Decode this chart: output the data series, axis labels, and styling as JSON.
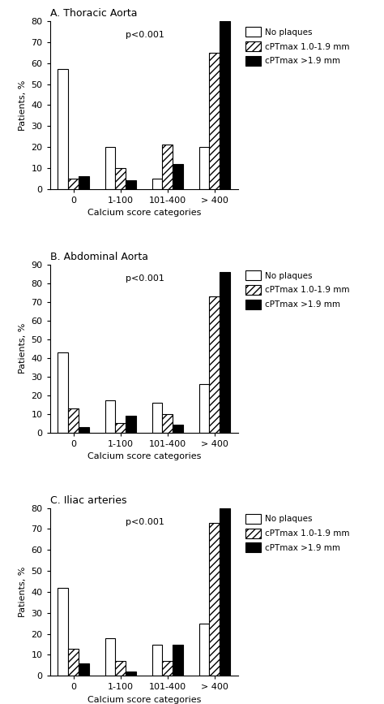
{
  "panels": [
    {
      "title": "A. Thoracic Aorta",
      "ylabel": "Patients, %",
      "xlabel": "Calcium score categories",
      "pvalue": "p<0.001",
      "ylim": [
        0,
        80
      ],
      "yticks": [
        0,
        10,
        20,
        30,
        40,
        50,
        60,
        70,
        80
      ],
      "categories": [
        "0",
        "1-100",
        "101-400",
        "> 400"
      ],
      "no_plaques": [
        57,
        20,
        5,
        20
      ],
      "cpt_low": [
        5,
        10,
        21,
        65
      ],
      "cpt_high": [
        6,
        4,
        12,
        80
      ]
    },
    {
      "title": "B. Abdominal Aorta",
      "ylabel": "Patients, %",
      "xlabel": "Calcium score categories",
      "pvalue": "p<0.001",
      "ylim": [
        0,
        90
      ],
      "yticks": [
        0,
        10,
        20,
        30,
        40,
        50,
        60,
        70,
        80,
        90
      ],
      "categories": [
        "0",
        "1-100",
        "101-400",
        "> 400"
      ],
      "no_plaques": [
        43,
        17,
        16,
        26
      ],
      "cpt_low": [
        13,
        5,
        10,
        73
      ],
      "cpt_high": [
        3,
        9,
        4,
        86
      ]
    },
    {
      "title": "C. Iliac arteries",
      "ylabel": "Patients, %",
      "xlabel": "Calcium score categories",
      "pvalue": "p<0.001",
      "ylim": [
        0,
        80
      ],
      "yticks": [
        0,
        10,
        20,
        30,
        40,
        50,
        60,
        70,
        80
      ],
      "categories": [
        "0",
        "1-100",
        "101-400",
        "> 400"
      ],
      "no_plaques": [
        42,
        18,
        15,
        25
      ],
      "cpt_low": [
        13,
        7,
        7,
        73
      ],
      "cpt_high": [
        6,
        2,
        15,
        80
      ]
    }
  ],
  "legend_labels": [
    "No plaques",
    "cPTmax 1.0-1.9 mm",
    "cPTmax >1.9 mm"
  ],
  "bar_width": 0.22,
  "background_color": "#ffffff",
  "hatch_pattern": "////"
}
